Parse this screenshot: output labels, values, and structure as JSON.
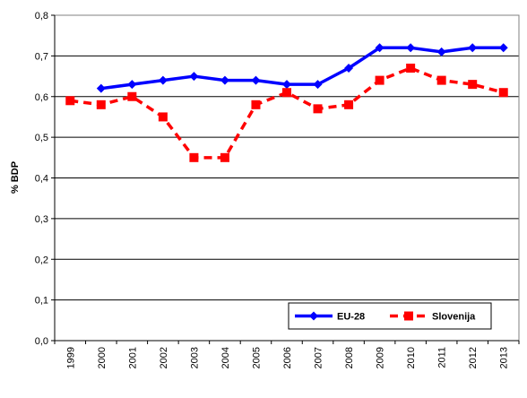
{
  "chart_data": {
    "type": "line",
    "title": "",
    "xlabel": "",
    "ylabel": "% BDP",
    "x": [
      "1999",
      "2000",
      "2001",
      "2002",
      "2003",
      "2004",
      "2005",
      "2006",
      "2007",
      "2008",
      "2009",
      "2010",
      "2011",
      "2012",
      "2013"
    ],
    "ylim": [
      0,
      0.8
    ],
    "yticks": [
      "0,0",
      "0,1",
      "0,2",
      "0,3",
      "0,4",
      "0,5",
      "0,6",
      "0,7",
      "0,8"
    ],
    "grid": "horizontal",
    "legend_position": "bottom-right",
    "series": [
      {
        "name": "EU-28",
        "color": "#0000FF",
        "style": "solid",
        "marker": "diamond",
        "values": [
          null,
          0.62,
          0.63,
          0.64,
          0.65,
          0.64,
          0.64,
          0.63,
          0.63,
          0.67,
          0.72,
          0.72,
          0.71,
          0.72,
          0.72
        ]
      },
      {
        "name": "Slovenija",
        "color": "#FF0000",
        "style": "dashed",
        "marker": "square",
        "values": [
          0.59,
          0.58,
          0.6,
          0.55,
          0.45,
          0.45,
          0.58,
          0.61,
          0.57,
          0.58,
          0.64,
          0.67,
          0.64,
          0.63,
          0.61
        ]
      }
    ]
  }
}
